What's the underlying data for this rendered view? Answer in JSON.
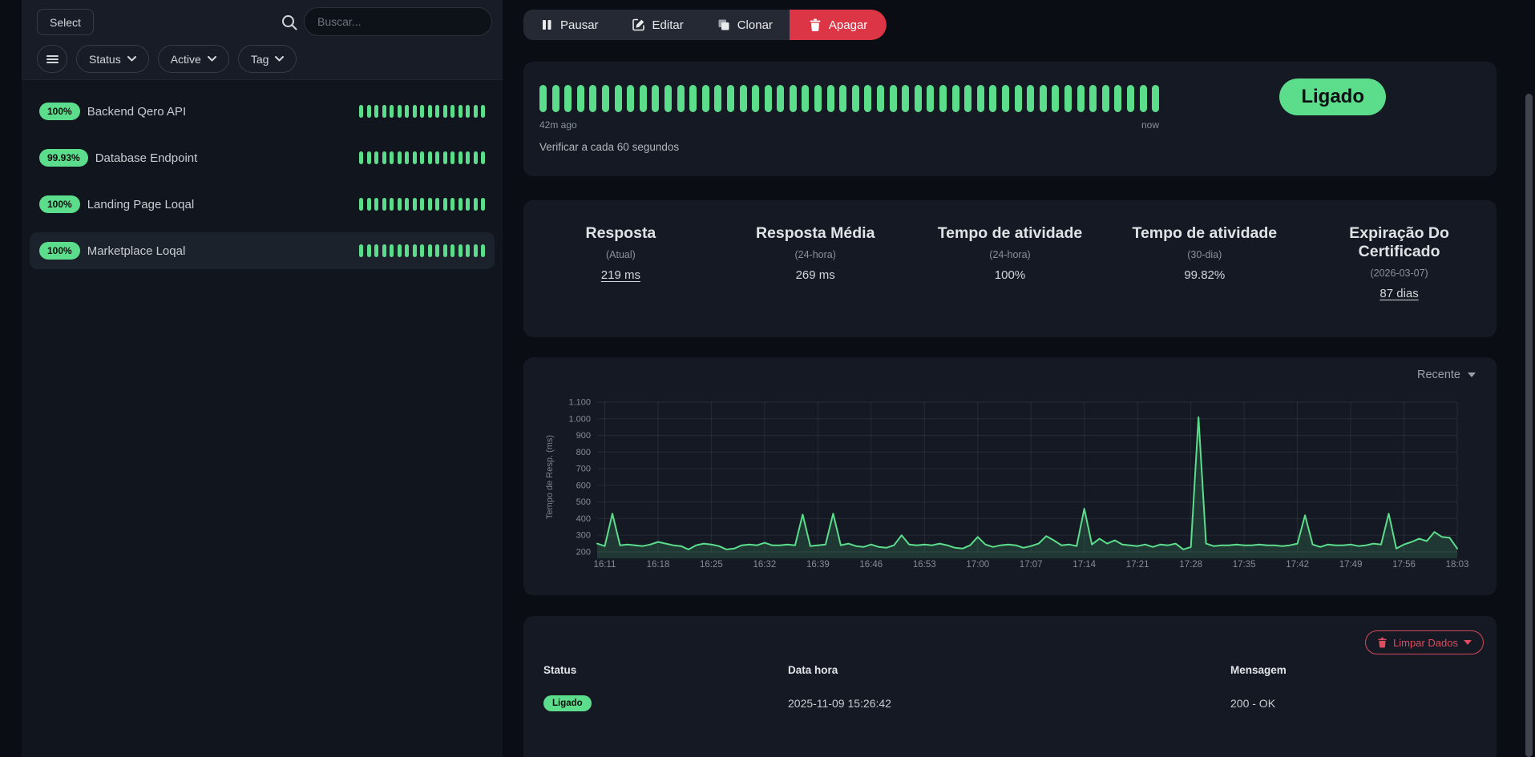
{
  "sidebar": {
    "select_button": "Select",
    "search": {
      "placeholder": "Buscar..."
    },
    "filters": {
      "status": "Status",
      "active": "Active",
      "tag": "Tag"
    },
    "monitors": [
      {
        "uptime": "100%",
        "name": "Backend Qero API",
        "beats": 17
      },
      {
        "uptime": "99.93%",
        "name": "Database Endpoint",
        "beats": 17
      },
      {
        "uptime": "100%",
        "name": "Landing Page Loqal",
        "beats": 17
      },
      {
        "uptime": "100%",
        "name": "Marketplace Loqal",
        "beats": 17
      }
    ]
  },
  "toolbar": {
    "pause": "Pausar",
    "edit": "Editar",
    "clone": "Clonar",
    "delete": "Apagar"
  },
  "monitor": {
    "status_badge": "Ligado",
    "heartbeat": {
      "bars": 50,
      "ago_label": "42m ago",
      "now_label": "now"
    },
    "check_interval": "Verificar a cada 60 segundos"
  },
  "stats": [
    {
      "title": "Resposta",
      "subtitle": "(Atual)",
      "value": "219 ms"
    },
    {
      "title": "Resposta Média",
      "subtitle": "(24-hora)",
      "value": "269 ms"
    },
    {
      "title": "Tempo de atividade",
      "subtitle": "(24-hora)",
      "value": "100%"
    },
    {
      "title": "Tempo de atividade",
      "subtitle": "(30-dia)",
      "value": "99.82%"
    },
    {
      "title": "Expiração Do Certificado",
      "subtitle": "(2026-03-07)",
      "value": "87 dias"
    }
  ],
  "chart": {
    "period_selector": "Recente"
  },
  "chart_data": {
    "type": "area",
    "title": "",
    "xlabel": "",
    "ylabel": "Tempo de Resp. (ms)",
    "ylim": [
      200,
      1100
    ],
    "y_ticks": [
      "1.100",
      "1.000",
      "900",
      "800",
      "700",
      "600",
      "500",
      "400",
      "300",
      "200"
    ],
    "x_start": "16:10",
    "interval_seconds": 60,
    "x_ticks": [
      "16:11",
      "16:18",
      "16:25",
      "16:32",
      "16:39",
      "16:46",
      "16:53",
      "17:00",
      "17:07",
      "17:14",
      "17:21",
      "17:28",
      "17:35",
      "17:42",
      "17:49",
      "17:56",
      "18:03"
    ],
    "x_tick_first": 1,
    "x_tick_step": 7,
    "line_color": "#5cdd8b",
    "fill_color": "rgba(92,221,139,0.16)",
    "values": [
      250,
      235,
      430,
      240,
      245,
      240,
      235,
      245,
      260,
      250,
      240,
      235,
      215,
      240,
      250,
      245,
      235,
      215,
      220,
      240,
      245,
      240,
      255,
      240,
      240,
      245,
      240,
      425,
      235,
      240,
      245,
      430,
      240,
      250,
      235,
      230,
      245,
      230,
      225,
      240,
      300,
      245,
      240,
      245,
      240,
      250,
      240,
      225,
      220,
      240,
      290,
      245,
      230,
      240,
      245,
      240,
      225,
      235,
      250,
      295,
      270,
      240,
      245,
      235,
      460,
      245,
      280,
      250,
      270,
      245,
      240,
      235,
      245,
      230,
      245,
      240,
      250,
      215,
      230,
      1010,
      250,
      235,
      240,
      240,
      245,
      240,
      240,
      245,
      240,
      240,
      235,
      240,
      250,
      420,
      245,
      230,
      245,
      240,
      240,
      245,
      235,
      240,
      250,
      245,
      430,
      220,
      245,
      260,
      280,
      265,
      320,
      290,
      285,
      220
    ]
  },
  "events": {
    "clear_button": "Limpar Dados",
    "columns": [
      "Status",
      "Data hora",
      "Mensagem"
    ],
    "rows": [
      {
        "status": "Ligado",
        "datetime": "2025-11-09 15:26:42",
        "message": "200 - OK"
      }
    ]
  },
  "colors": {
    "green": "#5cdd8b",
    "danger": "#dc3545",
    "danger_outline": "#e14b5e"
  }
}
